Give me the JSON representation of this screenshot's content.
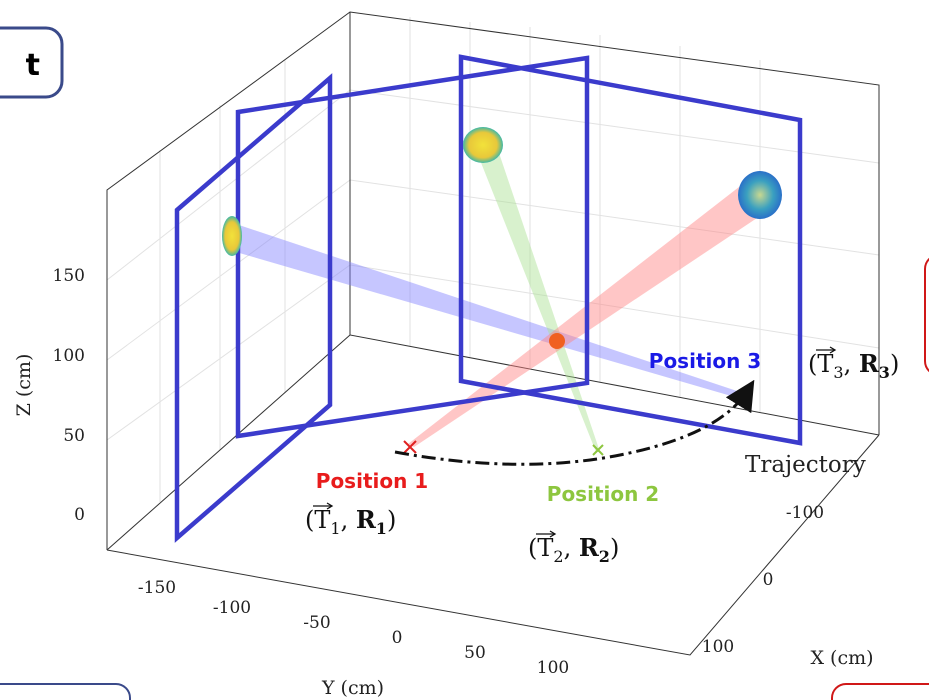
{
  "corner_box": {
    "text": "t"
  },
  "z_axis": {
    "label": "Z (cm)",
    "ticks": [
      "150",
      "100",
      "50",
      "0"
    ]
  },
  "y_axis": {
    "label": "Y (cm)",
    "ticks": [
      "-150",
      "-100",
      "-50",
      "0",
      "50",
      "100"
    ]
  },
  "x_axis": {
    "label": "X (cm)",
    "ticks": [
      "-100",
      "0",
      "100"
    ]
  },
  "positions": [
    {
      "label": "Position 1",
      "t": "T",
      "sub1": "1",
      "r": "R",
      "sub2": "1"
    },
    {
      "label": "Position 2",
      "t": "T",
      "sub1": "2",
      "r": "R",
      "sub2": "2"
    },
    {
      "label": "Position 3",
      "t": "T",
      "sub1": "3",
      "r": "R",
      "sub2": "3"
    }
  ],
  "trajectory": "Trajectory"
}
